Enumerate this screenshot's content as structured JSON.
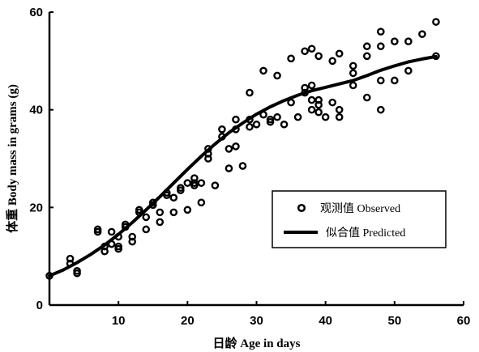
{
  "chart_data": {
    "type": "scatter",
    "xlabel": "日龄 Age in days",
    "ylabel": "体重 Body mass in grams (g)",
    "xlim": [
      0,
      60
    ],
    "ylim": [
      0,
      60
    ],
    "xticks": [
      10,
      20,
      30,
      40,
      50,
      60
    ],
    "yticks": [
      0,
      20,
      40,
      60
    ],
    "grid": false,
    "legend_position": "lower-right",
    "series": [
      {
        "name": "观测值 Observed",
        "kind": "scatter",
        "marker": "open-circle",
        "points": [
          [
            0,
            6
          ],
          [
            3,
            9.5
          ],
          [
            3,
            8.5
          ],
          [
            4,
            7
          ],
          [
            4,
            6.5
          ],
          [
            7,
            15.5
          ],
          [
            7,
            15
          ],
          [
            8,
            12
          ],
          [
            8,
            11
          ],
          [
            9,
            15
          ],
          [
            9,
            12.5
          ],
          [
            10,
            14
          ],
          [
            10,
            12
          ],
          [
            10,
            11.5
          ],
          [
            11,
            16.5
          ],
          [
            11,
            16
          ],
          [
            12,
            14
          ],
          [
            12,
            13
          ],
          [
            13,
            19.5
          ],
          [
            13,
            19
          ],
          [
            14,
            18
          ],
          [
            14,
            15.5
          ],
          [
            15,
            21
          ],
          [
            15,
            20.5
          ],
          [
            16,
            19
          ],
          [
            16,
            17
          ],
          [
            17,
            23
          ],
          [
            17,
            22.5
          ],
          [
            18,
            22
          ],
          [
            18,
            19
          ],
          [
            19,
            24
          ],
          [
            19,
            23.5
          ],
          [
            20,
            25
          ],
          [
            20,
            19.5
          ],
          [
            21,
            26
          ],
          [
            21,
            25
          ],
          [
            21,
            24.5
          ],
          [
            22,
            25
          ],
          [
            22,
            21
          ],
          [
            23,
            32
          ],
          [
            23,
            31
          ],
          [
            23,
            30
          ],
          [
            24,
            24.5
          ],
          [
            25,
            36
          ],
          [
            25,
            34.5
          ],
          [
            26,
            32
          ],
          [
            26,
            28
          ],
          [
            27,
            38
          ],
          [
            27,
            36
          ],
          [
            27,
            32.5
          ],
          [
            28,
            28.5
          ],
          [
            29,
            43.5
          ],
          [
            29,
            38
          ],
          [
            29,
            36.5
          ],
          [
            30,
            37
          ],
          [
            31,
            48
          ],
          [
            31,
            39
          ],
          [
            32,
            38
          ],
          [
            32,
            37.5
          ],
          [
            33,
            47
          ],
          [
            33,
            38.5
          ],
          [
            34,
            37
          ],
          [
            35,
            50.5
          ],
          [
            35,
            41.5
          ],
          [
            36,
            38.5
          ],
          [
            37,
            52
          ],
          [
            37,
            44.5
          ],
          [
            37,
            43.5
          ],
          [
            38,
            52.5
          ],
          [
            38,
            45
          ],
          [
            38,
            42
          ],
          [
            38,
            40
          ],
          [
            39,
            51
          ],
          [
            39,
            42
          ],
          [
            39,
            41
          ],
          [
            39,
            39.5
          ],
          [
            40,
            38.5
          ],
          [
            41,
            50
          ],
          [
            41,
            41.5
          ],
          [
            42,
            51.5
          ],
          [
            42,
            40
          ],
          [
            42,
            38.5
          ],
          [
            44,
            49
          ],
          [
            44,
            47.5
          ],
          [
            44,
            45
          ],
          [
            46,
            53
          ],
          [
            46,
            51
          ],
          [
            46,
            42.5
          ],
          [
            48,
            56
          ],
          [
            48,
            53
          ],
          [
            48,
            46
          ],
          [
            48,
            40
          ],
          [
            50,
            54
          ],
          [
            50,
            46
          ],
          [
            52,
            54
          ],
          [
            52,
            48
          ],
          [
            54,
            55.5
          ],
          [
            56,
            58
          ],
          [
            56,
            51
          ]
        ]
      },
      {
        "name": "似合值 Predicted",
        "kind": "line",
        "points": [
          [
            0,
            6.0
          ],
          [
            2,
            7.2
          ],
          [
            4,
            8.7
          ],
          [
            6,
            10.4
          ],
          [
            8,
            12.3
          ],
          [
            10,
            14.5
          ],
          [
            12,
            16.9
          ],
          [
            14,
            19.5
          ],
          [
            16,
            22.2
          ],
          [
            18,
            25.0
          ],
          [
            20,
            27.8
          ],
          [
            22,
            30.5
          ],
          [
            24,
            33.0
          ],
          [
            26,
            35.3
          ],
          [
            28,
            37.3
          ],
          [
            30,
            39.1
          ],
          [
            32,
            40.6
          ],
          [
            34,
            41.9
          ],
          [
            36,
            43.0
          ],
          [
            38,
            43.9
          ],
          [
            40,
            44.6
          ],
          [
            42,
            45.3
          ],
          [
            44,
            46.0
          ],
          [
            46,
            47.0
          ],
          [
            48,
            48.1
          ],
          [
            50,
            49.0
          ],
          [
            52,
            49.8
          ],
          [
            54,
            50.4
          ],
          [
            56,
            50.9
          ]
        ]
      }
    ]
  }
}
